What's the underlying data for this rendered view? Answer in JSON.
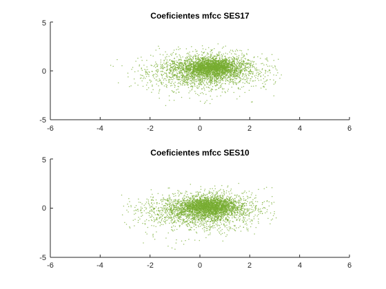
{
  "figure": {
    "background": "#ffffff"
  },
  "chart_data": [
    {
      "type": "scatter",
      "title": "Coeficientes mfcc SES17",
      "xlabel": "",
      "ylabel": "",
      "xlim": [
        -6,
        6
      ],
      "ylim": [
        -5,
        5
      ],
      "xticks": [
        "-6",
        "-4",
        "-2",
        "0",
        "2",
        "4",
        "6"
      ],
      "yticks": [
        "5",
        "0",
        "-5"
      ],
      "grid": false,
      "marker_color": "#77ac30",
      "cluster": {
        "center": [
          0.2,
          0.1
        ],
        "x_extent": [
          -4.1,
          3.3
        ],
        "y_extent": [
          -4.3,
          2.9
        ],
        "dense_core": [
          0.5,
          0.4
        ],
        "approx_points": 4000
      }
    },
    {
      "type": "scatter",
      "title": "Coeficientes mfcc SES10",
      "xlabel": "",
      "ylabel": "",
      "xlim": [
        -6,
        6
      ],
      "ylim": [
        -5,
        5
      ],
      "xticks": [
        "-6",
        "-4",
        "-2",
        "0",
        "2",
        "4",
        "6"
      ],
      "yticks": [
        "5",
        "0",
        "-5"
      ],
      "grid": false,
      "marker_color": "#77ac30",
      "cluster": {
        "center": [
          0.1,
          -0.1
        ],
        "x_extent": [
          -4.4,
          3.2
        ],
        "y_extent": [
          -4.3,
          3.3
        ],
        "dense_core": [
          0.4,
          0.2
        ],
        "approx_points": 4000
      }
    }
  ]
}
